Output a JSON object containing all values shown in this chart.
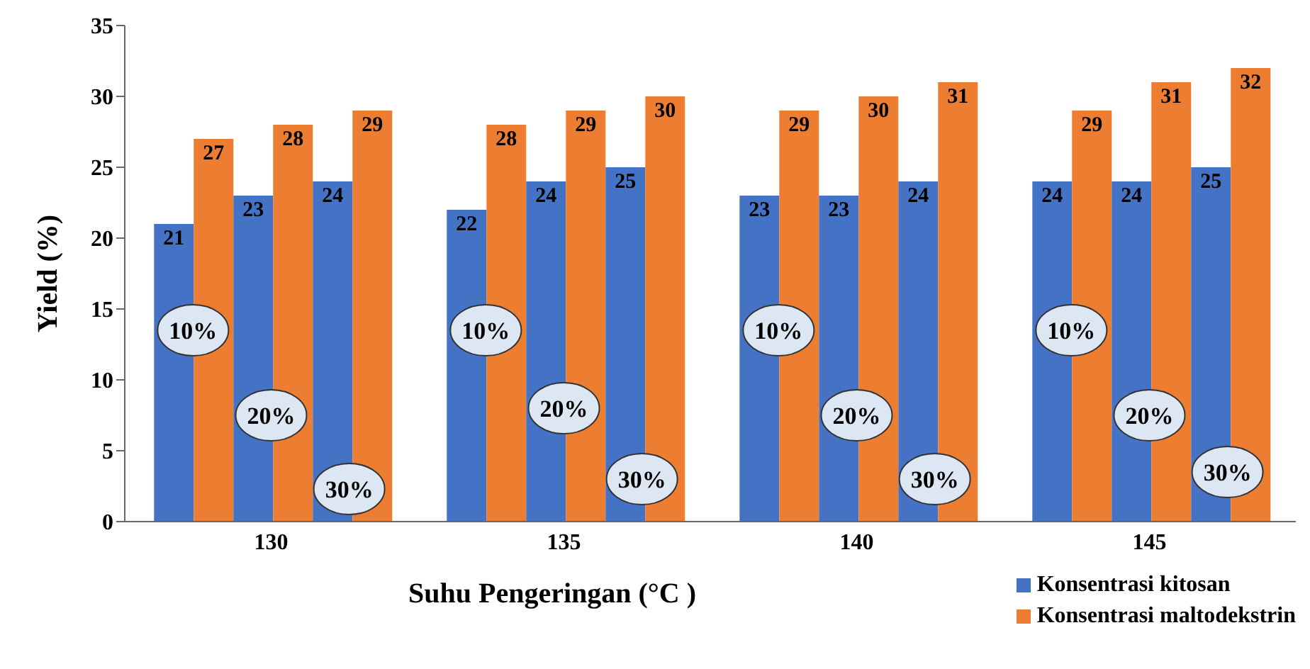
{
  "chart_data": {
    "type": "bar",
    "xlabel": "Suhu Pengeringan (°C )",
    "ylabel": "Yield (%)",
    "categories": [
      "130",
      "135",
      "140",
      "145"
    ],
    "series": [
      {
        "name": "Konsentrasi kitosan",
        "color": "#4472c4",
        "values": [
          21,
          22,
          23,
          24
        ]
      },
      {
        "name": "Konsentrasi maltodekstrin",
        "color": "#ed7d31",
        "values": [
          27,
          28,
          29,
          29
        ]
      },
      {
        "color": "#4472c4",
        "values": [
          23,
          24,
          23,
          24
        ]
      },
      {
        "color": "#ed7d31",
        "values": [
          28,
          29,
          30,
          31
        ]
      },
      {
        "color": "#4472c4",
        "values": [
          24,
          25,
          24,
          25
        ]
      },
      {
        "color": "#ed7d31",
        "values": [
          29,
          30,
          31,
          32
        ]
      }
    ],
    "ylim": [
      0,
      35
    ],
    "yticks": [
      0,
      5,
      10,
      15,
      20,
      25,
      30,
      35
    ],
    "data_labels": true,
    "legend": "bottom right",
    "annotations": [
      {
        "text": "10%",
        "x": "130",
        "y": 13.5
      },
      {
        "text": "20%",
        "x": "130",
        "y": 7.5
      },
      {
        "text": "30%",
        "x": "130",
        "y": 2.3
      },
      {
        "text": "10%",
        "x": "135",
        "y": 13.5
      },
      {
        "text": "20%",
        "x": "135",
        "y": 8
      },
      {
        "text": "30%",
        "x": "135",
        "y": 3
      },
      {
        "text": "10%",
        "x": "140",
        "y": 13.5
      },
      {
        "text": "20%",
        "x": "140",
        "y": 7.5
      },
      {
        "text": "30%",
        "x": "140",
        "y": 3
      },
      {
        "text": "10%",
        "x": "145",
        "y": 13.5
      },
      {
        "text": "20%",
        "x": "145",
        "y": 7.5
      },
      {
        "text": "30%",
        "x": "145",
        "y": 3.5
      }
    ]
  }
}
